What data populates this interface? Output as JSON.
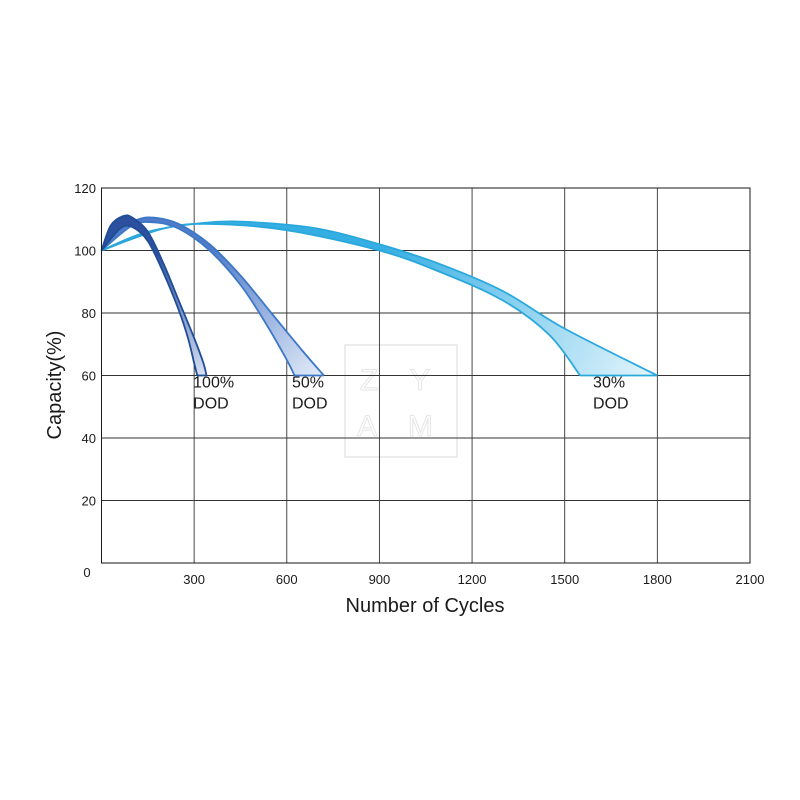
{
  "chart_data": {
    "type": "line",
    "xlabel": "Number of Cycles",
    "ylabel": "Capacity(%)",
    "xlim": [
      0,
      2100
    ],
    "ylim": [
      0,
      120
    ],
    "x_ticks": [
      "0",
      "300",
      "600",
      "900",
      "1200",
      "1500",
      "1800",
      "2100"
    ],
    "y_ticks": [
      "0",
      "20",
      "40",
      "60",
      "80",
      "100",
      "120"
    ],
    "grid": true,
    "series": [
      {
        "name": "100% DOD",
        "label_lines": [
          "100%",
          "DOD"
        ],
        "color": "#1f4e96",
        "band_start": "#2d4fa0",
        "band_end": "#d9e1f4",
        "upper": [
          [
            0,
            100
          ],
          [
            30,
            108
          ],
          [
            70,
            111
          ],
          [
            100,
            110.5
          ],
          [
            150,
            106
          ],
          [
            200,
            96
          ],
          [
            250,
            84
          ],
          [
            300,
            72
          ],
          [
            330,
            64
          ],
          [
            340,
            60
          ]
        ],
        "lower": [
          [
            0,
            100
          ],
          [
            60,
            107
          ],
          [
            100,
            107.5
          ],
          [
            150,
            103
          ],
          [
            200,
            93
          ],
          [
            250,
            81
          ],
          [
            280,
            72
          ],
          [
            300,
            64
          ],
          [
            310,
            60
          ]
        ]
      },
      {
        "name": "50% DOD",
        "label_lines": [
          "50%",
          "DOD"
        ],
        "color": "#3d78c7",
        "band_start": "#4f7bc9",
        "band_end": "#e3ebf8",
        "upper": [
          [
            0,
            100
          ],
          [
            60,
            107
          ],
          [
            120,
            110
          ],
          [
            170,
            110.5
          ],
          [
            250,
            108.5
          ],
          [
            350,
            102
          ],
          [
            450,
            92
          ],
          [
            550,
            80
          ],
          [
            650,
            68
          ],
          [
            720,
            60
          ]
        ],
        "lower": [
          [
            0,
            100
          ],
          [
            100,
            108
          ],
          [
            170,
            109
          ],
          [
            250,
            107
          ],
          [
            350,
            100
          ],
          [
            450,
            89
          ],
          [
            530,
            77
          ],
          [
            600,
            65
          ],
          [
            625,
            60
          ]
        ]
      },
      {
        "name": "30% DOD",
        "label_lines": [
          "30%",
          "DOD"
        ],
        "color": "#2aa8dc",
        "band_start": "#35aee3",
        "band_end": "#e5f5fc",
        "upper": [
          [
            0,
            100
          ],
          [
            150,
            106
          ],
          [
            350,
            109
          ],
          [
            500,
            109
          ],
          [
            700,
            107
          ],
          [
            900,
            102
          ],
          [
            1100,
            95.5
          ],
          [
            1300,
            87
          ],
          [
            1500,
            75
          ],
          [
            1800,
            60
          ]
        ],
        "lower": [
          [
            0,
            100
          ],
          [
            200,
            107
          ],
          [
            350,
            108.5
          ],
          [
            600,
            106.5
          ],
          [
            900,
            100
          ],
          [
            1100,
            93
          ],
          [
            1300,
            84
          ],
          [
            1450,
            73
          ],
          [
            1550,
            60
          ]
        ]
      }
    ]
  },
  "watermark": {
    "line1": "Z Y",
    "line2": "A M"
  }
}
